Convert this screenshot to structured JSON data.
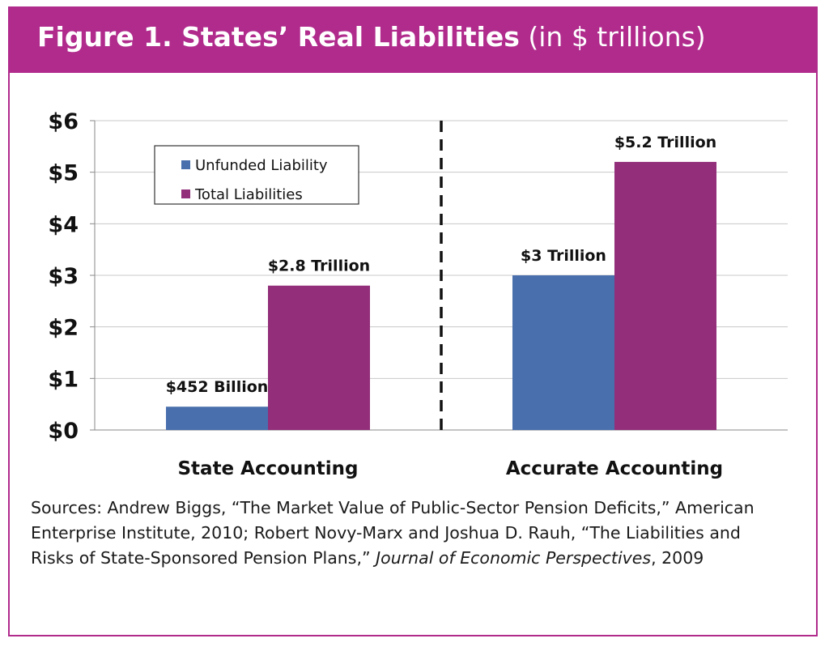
{
  "figure_label": "Figure 1. States’ Real Liabilities",
  "figure_unit": "(in $ trillions)",
  "chart_data": {
    "type": "bar",
    "categories": [
      "State Accounting",
      "Accurate Accounting"
    ],
    "series": [
      {
        "name": "Unfunded Liability",
        "color": "#4a6fad",
        "values": [
          0.452,
          3.0
        ],
        "labels": [
          "$452 Billion",
          "$3 Trillion"
        ]
      },
      {
        "name": "Total Liabilities",
        "color": "#922e7a",
        "values": [
          2.8,
          5.2
        ],
        "labels": [
          "$2.8 Trillion",
          "$5.2 Trillion"
        ]
      }
    ],
    "ylim": [
      0,
      6
    ],
    "yticks": [
      0,
      1,
      2,
      3,
      4,
      5,
      6
    ],
    "ytick_labels": [
      "$0",
      "$1",
      "$2",
      "$3",
      "$4",
      "$5",
      "$6"
    ],
    "grid": true,
    "legend_position": "top-left",
    "divider": "dashed vertical line between groups"
  },
  "sources": {
    "part1": "Sources: Andrew Biggs, “The Market Value of Public-Sector Pension Deficits,” American Enterprise Institute, 2010; Robert Novy-Marx and Joshua D. Rauh, “The Liabilities and Risks of State-Sponsored Pension Plans,” ",
    "journal": "Journal of Economic Perspectives",
    "part2": ", 2009"
  }
}
